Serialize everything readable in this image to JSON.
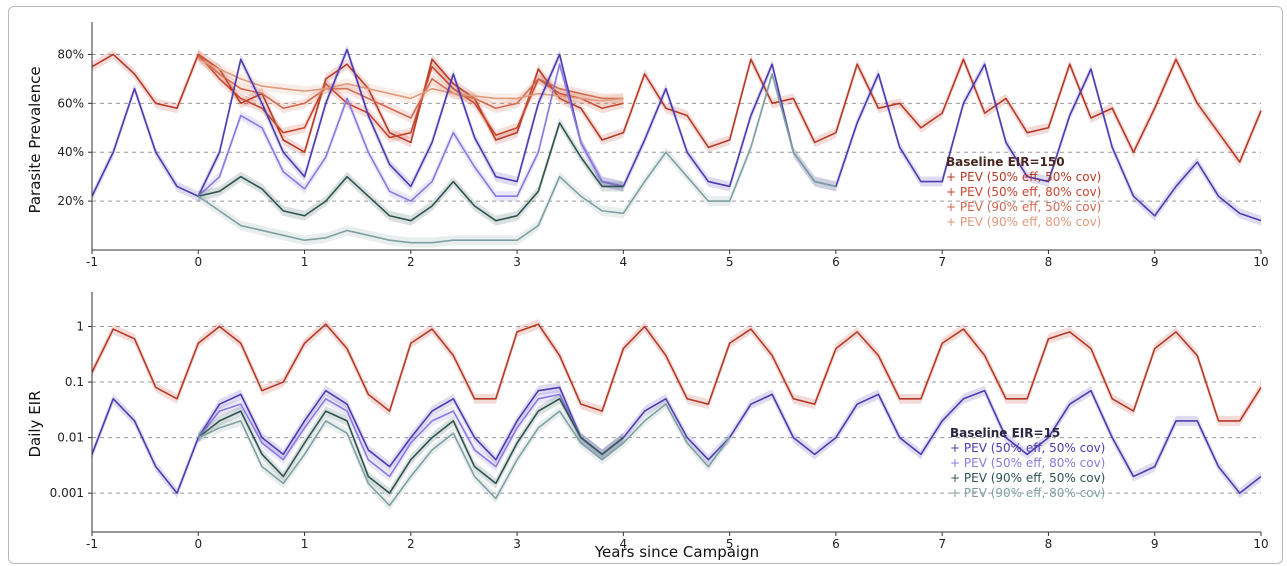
{
  "colors": {
    "baseline_150": "#4a2722",
    "high_eir": [
      "#b63a26",
      "#c7462f",
      "#d16a50",
      "#e09a7c"
    ],
    "baseline_15": "#2a2540",
    "low_eir": [
      "#4d3bb0",
      "#8b7ae0",
      "#2f5450",
      "#7fa0a2"
    ],
    "grid": "#9a9a9a"
  },
  "chart_data": [
    {
      "type": "line",
      "panel": "top",
      "ylabel": "Parasite Prevalence",
      "xlim": [
        -1,
        10
      ],
      "ylim": [
        0,
        90
      ],
      "yticks": [
        20,
        40,
        60,
        80
      ],
      "ytick_labels": [
        "20%",
        "40%",
        "60%",
        "80%"
      ],
      "xticks": [
        -1,
        0,
        1,
        2,
        3,
        4,
        5,
        6,
        7,
        8,
        9,
        10
      ],
      "xtick_labels": [
        "-1",
        "0",
        "1",
        "2",
        "3",
        "4",
        "5",
        "6",
        "7",
        "8",
        "9",
        "10"
      ],
      "legend": {
        "placement": "right",
        "title": "Baseline  EIR=150",
        "entries": [
          "+ PEV (50% eff, 50% cov)",
          "+ PEV (50% eff, 80% cov)",
          "+ PEV (90% eff, 50% cov)",
          "+ PEV (90% eff, 80% cov)"
        ]
      },
      "series": [
        {
          "group": "eir150",
          "x": [
            -1,
            -0.8,
            -0.6,
            -0.4,
            -0.2,
            0,
            0.2,
            0.4,
            0.6,
            0.8,
            1,
            1.2,
            1.4,
            1.6,
            1.8,
            2,
            2.2,
            2.4,
            2.6,
            2.8,
            3,
            3.2,
            3.4,
            3.6,
            3.8,
            4,
            4.2,
            4.4,
            4.6,
            4.8,
            5,
            5.2,
            5.4,
            5.6,
            5.8,
            6,
            6.2,
            6.4,
            6.6,
            6.8,
            7,
            7.2,
            7.4,
            7.6,
            7.8,
            8,
            8.2,
            8.4,
            8.6,
            8.8,
            9,
            9.2,
            9.4,
            9.6,
            9.8,
            10
          ],
          "y": [
            75,
            80,
            72,
            60,
            58,
            80,
            74,
            60,
            64,
            45,
            40,
            70,
            76,
            66,
            48,
            44,
            78,
            68,
            62,
            45,
            48,
            74,
            62,
            58,
            45,
            48,
            72,
            58,
            55,
            42,
            45,
            78,
            60,
            62,
            44,
            48,
            76,
            58,
            60,
            50,
            56,
            78,
            56,
            62,
            48,
            50,
            76,
            54,
            58,
            40,
            58,
            78,
            60,
            48,
            36,
            57
          ]
        },
        {
          "group": "eir150",
          "x": [
            0,
            0.2,
            0.4,
            0.6,
            0.8,
            1,
            1.2,
            1.4,
            1.6,
            1.8,
            2,
            2.2,
            2.4,
            2.6,
            2.8,
            3,
            3.2,
            3.4,
            3.6,
            3.8,
            4
          ],
          "y": [
            80,
            70,
            62,
            58,
            48,
            50,
            68,
            60,
            56,
            46,
            48,
            75,
            66,
            60,
            47,
            50,
            70,
            64,
            62,
            58,
            60
          ]
        },
        {
          "group": "eir150",
          "x": [
            0,
            0.2,
            0.4,
            0.6,
            0.8,
            1,
            1.2,
            1.4,
            1.6,
            1.8,
            2,
            2.2,
            2.4,
            2.6,
            2.8,
            3,
            3.2,
            3.4,
            3.6,
            3.8,
            4
          ],
          "y": [
            79,
            72,
            66,
            64,
            58,
            60,
            66,
            66,
            62,
            58,
            54,
            70,
            64,
            62,
            58,
            60,
            70,
            66,
            64,
            62,
            62
          ]
        },
        {
          "group": "eir150",
          "x": [
            0,
            0.2,
            0.4,
            0.6,
            0.8,
            1,
            1.2,
            1.4,
            1.6,
            1.8,
            2,
            2.2,
            2.4,
            2.6,
            2.8,
            3,
            3.2,
            3.4,
            3.6,
            3.8,
            4
          ],
          "y": [
            78,
            74,
            70,
            67,
            66,
            65,
            66,
            68,
            66,
            64,
            62,
            66,
            64,
            63,
            62,
            62,
            64,
            63,
            62,
            61,
            62
          ]
        },
        {
          "group": "eir15",
          "x": [
            -1,
            -0.8,
            -0.6,
            -0.4,
            -0.2,
            0,
            0.2,
            0.4,
            0.6,
            0.8,
            1,
            1.2,
            1.4,
            1.6,
            1.8,
            2,
            2.2,
            2.4,
            2.6,
            2.8,
            3,
            3.2,
            3.4,
            3.6,
            3.8,
            4,
            4.2,
            4.4,
            4.6,
            4.8,
            5,
            5.2,
            5.4,
            5.6,
            5.8,
            6,
            6.2,
            6.4,
            6.6,
            6.8,
            7,
            7.2,
            7.4,
            7.6,
            7.8,
            8,
            8.2,
            8.4,
            8.6,
            8.8,
            9,
            9.2,
            9.4,
            9.6,
            9.8,
            10
          ],
          "y": [
            22,
            40,
            66,
            40,
            26,
            22,
            40,
            78,
            60,
            40,
            30,
            60,
            82,
            55,
            35,
            26,
            44,
            72,
            46,
            30,
            28,
            60,
            80,
            44,
            28,
            26,
            45,
            66,
            40,
            28,
            26,
            55,
            76,
            40,
            28,
            26,
            52,
            72,
            42,
            28,
            28,
            60,
            76,
            44,
            30,
            28,
            55,
            74,
            42,
            22,
            14,
            26,
            36,
            22,
            15,
            12
          ]
        },
        {
          "group": "eir15",
          "x": [
            0,
            0.2,
            0.4,
            0.6,
            0.8,
            1,
            1.2,
            1.4,
            1.6,
            1.8,
            2,
            2.2,
            2.4,
            2.6,
            2.8,
            3,
            3.2,
            3.4,
            3.6,
            3.8,
            4
          ],
          "y": [
            22,
            30,
            55,
            50,
            32,
            25,
            38,
            62,
            40,
            24,
            20,
            28,
            48,
            34,
            22,
            22,
            40,
            76,
            44,
            28,
            26
          ]
        },
        {
          "group": "eir15",
          "x": [
            0,
            0.2,
            0.4,
            0.6,
            0.8,
            1,
            1.2,
            1.4,
            1.6,
            1.8,
            2,
            2.2,
            2.4,
            2.6,
            2.8,
            3,
            3.2,
            3.4,
            3.6,
            3.8,
            4
          ],
          "y": [
            22,
            24,
            30,
            25,
            16,
            14,
            20,
            30,
            22,
            14,
            12,
            18,
            28,
            18,
            12,
            14,
            24,
            52,
            38,
            26,
            26
          ]
        },
        {
          "group": "eir15",
          "x": [
            0,
            0.2,
            0.4,
            0.6,
            0.8,
            1,
            1.2,
            1.4,
            1.6,
            1.8,
            2,
            2.2,
            2.4,
            2.6,
            2.8,
            3,
            3.2,
            3.4,
            3.6,
            3.8,
            4,
            4.2,
            4.4,
            4.6,
            4.8,
            5,
            5.2,
            5.4,
            5.6,
            5.8,
            6
          ],
          "y": [
            22,
            16,
            10,
            8,
            6,
            4,
            5,
            8,
            6,
            4,
            3,
            3,
            4,
            4,
            4,
            4,
            10,
            30,
            22,
            16,
            15,
            28,
            40,
            30,
            20,
            20,
            42,
            72,
            40,
            28,
            26
          ]
        }
      ]
    },
    {
      "type": "line",
      "panel": "bottom",
      "ylabel": "Daily EIR",
      "xlabel": "Years since Campaign",
      "yscale": "log",
      "xlim": [
        -1,
        10
      ],
      "ylim": [
        0.0002,
        3
      ],
      "yticks": [
        0.001,
        0.01,
        0.1,
        1
      ],
      "ytick_labels": [
        "0.001",
        "0.01",
        "0.1",
        "1"
      ],
      "xticks": [
        -1,
        0,
        1,
        2,
        3,
        4,
        5,
        6,
        7,
        8,
        9,
        10
      ],
      "xtick_labels": [
        "-1",
        "0",
        "1",
        "2",
        "3",
        "4",
        "5",
        "6",
        "7",
        "8",
        "9",
        "10"
      ],
      "legend": {
        "placement": "right",
        "title": "Baseline  EIR=15",
        "entries": [
          "+ PEV (50% eff, 50% cov)",
          "+ PEV (50% eff, 80% cov)",
          "+ PEV (90% eff, 50% cov)",
          "+ PEV (90% eff, 80% cov)"
        ]
      },
      "series": [
        {
          "group": "eir150",
          "x": [
            -1,
            -0.8,
            -0.6,
            -0.4,
            -0.2,
            0,
            0.2,
            0.4,
            0.6,
            0.8,
            1,
            1.2,
            1.4,
            1.6,
            1.8,
            2,
            2.2,
            2.4,
            2.6,
            2.8,
            3,
            3.2,
            3.4,
            3.6,
            3.8,
            4,
            4.2,
            4.4,
            4.6,
            4.8,
            5,
            5.2,
            5.4,
            5.6,
            5.8,
            6,
            6.2,
            6.4,
            6.6,
            6.8,
            7,
            7.2,
            7.4,
            7.6,
            7.8,
            8,
            8.2,
            8.4,
            8.6,
            8.8,
            9,
            9.2,
            9.4,
            9.6,
            9.8,
            10
          ],
          "y": [
            0.15,
            0.9,
            0.6,
            0.08,
            0.05,
            0.5,
            1.0,
            0.5,
            0.07,
            0.1,
            0.5,
            1.1,
            0.4,
            0.06,
            0.03,
            0.5,
            0.9,
            0.3,
            0.05,
            0.05,
            0.8,
            1.1,
            0.3,
            0.04,
            0.03,
            0.4,
            1.0,
            0.3,
            0.05,
            0.04,
            0.5,
            0.9,
            0.3,
            0.05,
            0.04,
            0.4,
            0.8,
            0.3,
            0.05,
            0.05,
            0.5,
            0.9,
            0.3,
            0.05,
            0.05,
            0.6,
            0.8,
            0.4,
            0.05,
            0.03,
            0.4,
            0.8,
            0.3,
            0.02,
            0.02,
            0.08
          ]
        },
        {
          "group": "eir15",
          "x": [
            -1,
            -0.8,
            -0.6,
            -0.4,
            -0.2,
            0,
            0.2,
            0.4,
            0.6,
            0.8,
            1,
            1.2,
            1.4,
            1.6,
            1.8,
            2,
            2.2,
            2.4,
            2.6,
            2.8,
            3,
            3.2,
            3.4,
            3.6,
            3.8,
            4,
            4.2,
            4.4,
            4.6,
            4.8,
            5,
            5.2,
            5.4,
            5.6,
            5.8,
            6,
            6.2,
            6.4,
            6.6,
            6.8,
            7,
            7.2,
            7.4,
            7.6,
            7.8,
            8,
            8.2,
            8.4,
            8.6,
            8.8,
            9,
            9.2,
            9.4,
            9.6,
            9.8,
            10
          ],
          "y": [
            0.005,
            0.05,
            0.02,
            0.003,
            0.001,
            0.01,
            0.04,
            0.06,
            0.01,
            0.005,
            0.02,
            0.07,
            0.04,
            0.006,
            0.003,
            0.01,
            0.03,
            0.05,
            0.01,
            0.004,
            0.02,
            0.07,
            0.08,
            0.01,
            0.005,
            0.01,
            0.03,
            0.05,
            0.01,
            0.004,
            0.01,
            0.04,
            0.06,
            0.01,
            0.005,
            0.01,
            0.04,
            0.06,
            0.01,
            0.005,
            0.02,
            0.05,
            0.07,
            0.01,
            0.005,
            0.01,
            0.04,
            0.07,
            0.01,
            0.002,
            0.003,
            0.02,
            0.02,
            0.003,
            0.001,
            0.002
          ]
        },
        {
          "group": "eir15",
          "x": [
            0,
            0.2,
            0.4,
            0.6,
            0.8,
            1,
            1.2,
            1.4,
            1.6,
            1.8,
            2,
            2.2,
            2.4,
            2.6,
            2.8,
            3,
            3.2,
            3.4,
            3.6,
            3.8,
            4
          ],
          "y": [
            0.01,
            0.03,
            0.04,
            0.008,
            0.004,
            0.015,
            0.05,
            0.03,
            0.004,
            0.002,
            0.008,
            0.02,
            0.03,
            0.006,
            0.003,
            0.015,
            0.05,
            0.06,
            0.01,
            0.005,
            0.01
          ]
        },
        {
          "group": "eir15",
          "x": [
            0,
            0.2,
            0.4,
            0.6,
            0.8,
            1,
            1.2,
            1.4,
            1.6,
            1.8,
            2,
            2.2,
            2.4,
            2.6,
            2.8,
            3,
            3.2,
            3.4,
            3.6,
            3.8,
            4
          ],
          "y": [
            0.01,
            0.02,
            0.03,
            0.005,
            0.002,
            0.008,
            0.03,
            0.02,
            0.002,
            0.001,
            0.004,
            0.01,
            0.02,
            0.003,
            0.0015,
            0.008,
            0.03,
            0.05,
            0.01,
            0.005,
            0.01
          ]
        },
        {
          "group": "eir15",
          "x": [
            0,
            0.2,
            0.4,
            0.6,
            0.8,
            1,
            1.2,
            1.4,
            1.6,
            1.8,
            2,
            2.2,
            2.4,
            2.6,
            2.8,
            3,
            3.2,
            3.4,
            3.6,
            3.8,
            4,
            4.2,
            4.4,
            4.6,
            4.8,
            5
          ],
          "y": [
            0.01,
            0.015,
            0.02,
            0.003,
            0.0015,
            0.005,
            0.02,
            0.012,
            0.0015,
            0.0006,
            0.002,
            0.006,
            0.012,
            0.002,
            0.0008,
            0.004,
            0.015,
            0.03,
            0.008,
            0.004,
            0.008,
            0.02,
            0.04,
            0.008,
            0.003,
            0.01
          ]
        }
      ]
    }
  ]
}
